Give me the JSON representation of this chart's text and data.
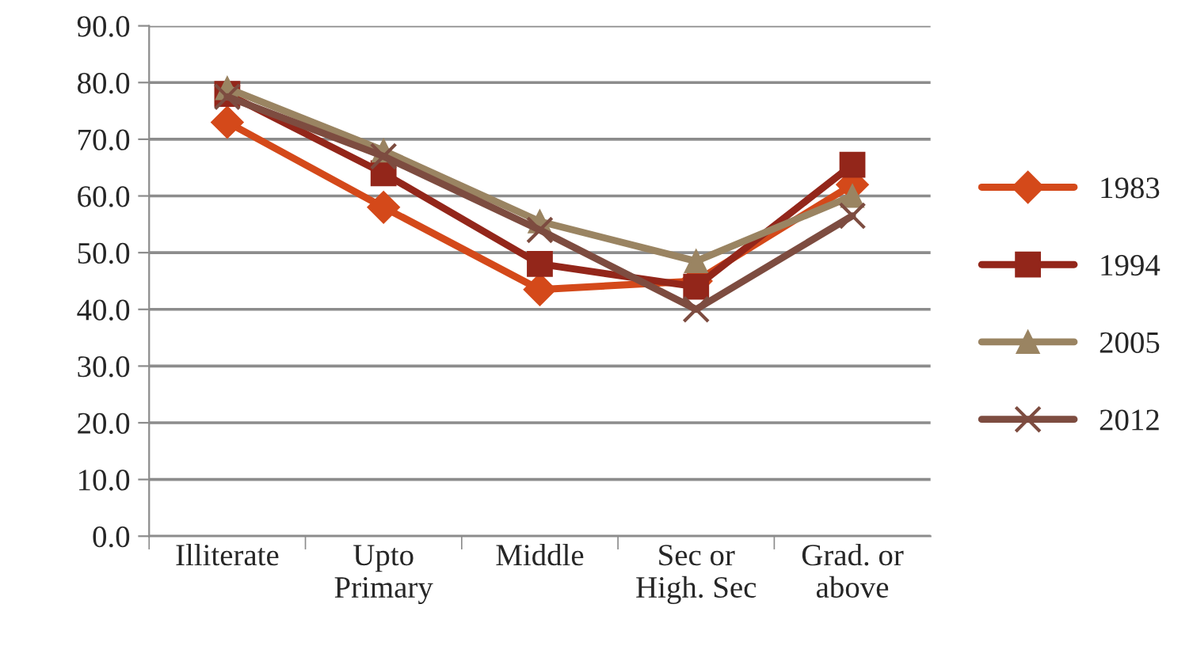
{
  "chart_data": {
    "type": "line",
    "categories": [
      "Illiterate",
      "Upto\nPrimary",
      "Middle",
      "Sec or\nHigh. Sec",
      "Grad. or\nabove"
    ],
    "series": [
      {
        "name": "1983",
        "color": "#d4491a",
        "marker": "diamond",
        "values": [
          73.0,
          58.0,
          43.5,
          45.0,
          62.0
        ]
      },
      {
        "name": "1994",
        "color": "#93261a",
        "marker": "square",
        "values": [
          78.0,
          64.0,
          48.0,
          44.0,
          65.5
        ]
      },
      {
        "name": "2005",
        "color": "#9a8462",
        "marker": "triangle",
        "values": [
          79.0,
          68.0,
          55.5,
          48.5,
          60.0
        ]
      },
      {
        "name": "2012",
        "color": "#7d4c40",
        "marker": "cross",
        "values": [
          77.5,
          67.0,
          54.0,
          40.0,
          56.5
        ]
      }
    ],
    "ylim": [
      0,
      90
    ],
    "yticks": [
      {
        "value": 0,
        "label": "0.0"
      },
      {
        "value": 10,
        "label": "10.0"
      },
      {
        "value": 20,
        "label": "20.0"
      },
      {
        "value": 30,
        "label": "30.0"
      },
      {
        "value": 40,
        "label": "40.0"
      },
      {
        "value": 50,
        "label": "50.0"
      },
      {
        "value": 60,
        "label": "60.0"
      },
      {
        "value": 70,
        "label": "70.0"
      },
      {
        "value": 80,
        "label": "80.0"
      },
      {
        "value": 90,
        "label": "90.0"
      }
    ],
    "grid": "y",
    "legend": "right",
    "line_style": "solid"
  }
}
